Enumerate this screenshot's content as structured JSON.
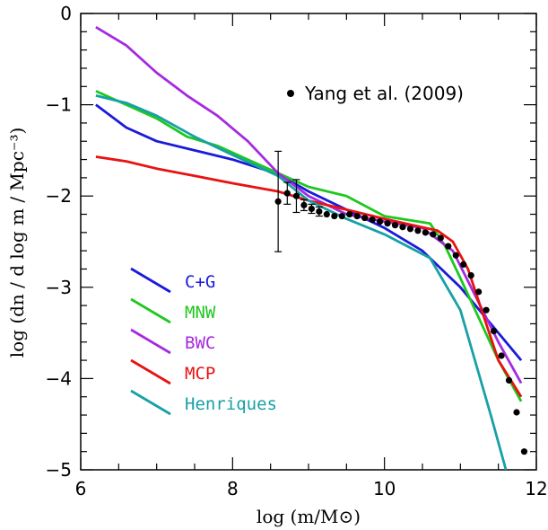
{
  "chart_data": {
    "type": "line",
    "title": "",
    "xlabel": "log (m/M⊙)",
    "ylabel": "log (dn / d log m  / Mpc⁻³)",
    "xlim": [
      6,
      12
    ],
    "ylim": [
      -5,
      0
    ],
    "x_ticks": [
      6,
      8,
      10,
      12
    ],
    "y_ticks": [
      0,
      -1,
      -2,
      -3,
      -4,
      -5
    ],
    "x_tick_labels": [
      "6",
      "8",
      "10",
      "12"
    ],
    "y_tick_labels": [
      "0",
      "−1",
      "−2",
      "−3",
      "−4",
      "−5"
    ],
    "legend_position": "lower-left",
    "series": [
      {
        "name": "C+G",
        "color": "#1a1adb",
        "x": [
          6.2,
          6.6,
          7.0,
          7.5,
          8.0,
          8.6,
          9.0,
          9.5,
          10.0,
          10.5,
          11.0,
          11.5,
          11.8
        ],
        "y": [
          -1.0,
          -1.25,
          -1.4,
          -1.5,
          -1.6,
          -1.76,
          -1.95,
          -2.15,
          -2.35,
          -2.6,
          -3.0,
          -3.5,
          -3.8
        ]
      },
      {
        "name": "MNW",
        "color": "#1ec81e",
        "x": [
          6.2,
          6.6,
          7.0,
          7.4,
          7.8,
          8.2,
          8.6,
          9.0,
          9.5,
          10.0,
          10.6,
          10.8,
          11.0,
          11.5,
          11.8
        ],
        "y": [
          -0.85,
          -1.0,
          -1.15,
          -1.35,
          -1.45,
          -1.6,
          -1.75,
          -1.9,
          -2.0,
          -2.22,
          -2.3,
          -2.55,
          -2.9,
          -3.8,
          -4.25
        ]
      },
      {
        "name": "BWC",
        "color": "#a52ae0",
        "x": [
          6.2,
          6.6,
          7.0,
          7.4,
          7.8,
          8.2,
          8.6,
          9.0,
          9.5,
          10.0,
          10.5,
          10.9,
          11.5,
          11.8
        ],
        "y": [
          -0.15,
          -0.35,
          -0.65,
          -0.9,
          -1.12,
          -1.4,
          -1.75,
          -2.0,
          -2.2,
          -2.28,
          -2.35,
          -2.6,
          -3.6,
          -4.05
        ]
      },
      {
        "name": "MCP",
        "color": "#e81212",
        "x": [
          6.2,
          6.6,
          7.0,
          7.5,
          8.0,
          8.6,
          9.0,
          9.5,
          10.0,
          10.7,
          10.9,
          11.1,
          11.3,
          11.5,
          11.8
        ],
        "y": [
          -1.57,
          -1.62,
          -1.7,
          -1.78,
          -1.86,
          -1.95,
          -2.05,
          -2.15,
          -2.25,
          -2.38,
          -2.5,
          -2.8,
          -3.3,
          -3.8,
          -4.2
        ]
      },
      {
        "name": "Henriques",
        "color": "#17a0a6",
        "x": [
          6.2,
          6.6,
          7.0,
          7.5,
          8.0,
          8.6,
          9.0,
          9.5,
          10.0,
          10.6,
          11.0,
          11.4,
          11.6
        ],
        "y": [
          -0.9,
          -0.98,
          -1.12,
          -1.35,
          -1.55,
          -1.78,
          -2.05,
          -2.25,
          -2.42,
          -2.68,
          -3.25,
          -4.4,
          -5.0
        ]
      }
    ],
    "points": {
      "name": "Yang et al. (2009)",
      "color": "#000000",
      "x": [
        8.6,
        8.72,
        8.84,
        8.94,
        9.04,
        9.14,
        9.24,
        9.34,
        9.44,
        9.54,
        9.64,
        9.74,
        9.84,
        9.94,
        10.04,
        10.14,
        10.24,
        10.34,
        10.44,
        10.54,
        10.64,
        10.74,
        10.84,
        10.94,
        11.04,
        11.14,
        11.24,
        11.34,
        11.44,
        11.54,
        11.64,
        11.74,
        11.84
      ],
      "y": [
        -2.06,
        -1.97,
        -2.0,
        -2.1,
        -2.14,
        -2.17,
        -2.2,
        -2.22,
        -2.22,
        -2.2,
        -2.22,
        -2.24,
        -2.26,
        -2.28,
        -2.3,
        -2.32,
        -2.34,
        -2.36,
        -2.38,
        -2.4,
        -2.42,
        -2.46,
        -2.55,
        -2.65,
        -2.75,
        -2.87,
        -3.05,
        -3.25,
        -3.48,
        -3.75,
        -4.02,
        -4.37,
        -4.8
      ],
      "err": [
        0.55,
        0.12,
        0.18,
        0.06,
        0.05,
        0.05,
        0.04,
        0.04,
        0.04,
        0.04,
        0.04,
        0.04,
        0.04,
        0.04,
        0.04,
        0.03,
        0.03,
        0.03,
        0.03,
        0.03,
        0.03,
        0.03,
        0.03,
        0.03,
        0.03,
        0.03,
        0.03,
        0.03,
        0.03,
        0.03,
        0.03,
        0.03,
        0.03
      ]
    }
  }
}
